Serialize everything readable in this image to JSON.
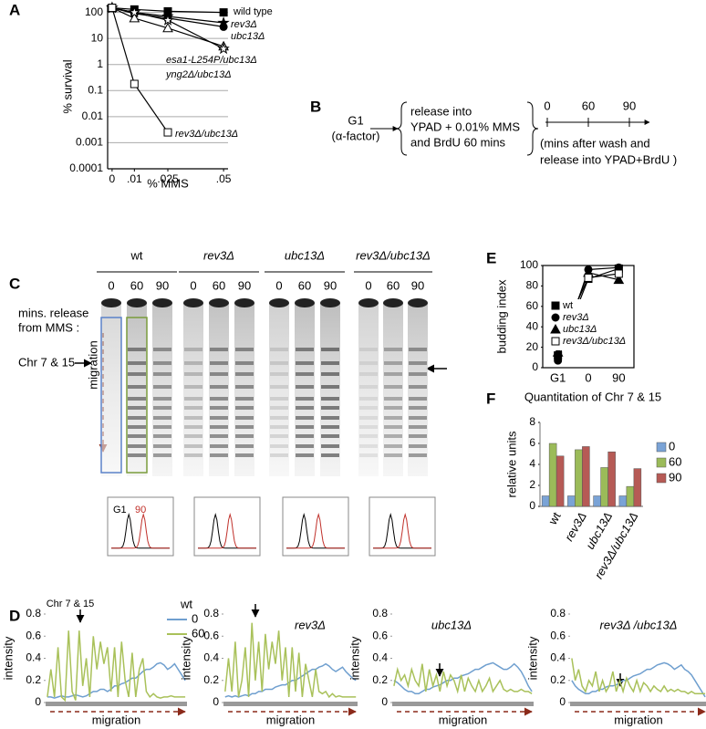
{
  "panel_labels": [
    "A",
    "B",
    "C",
    "D",
    "E",
    "F"
  ],
  "diagram_b": {
    "start": [
      "G1",
      "(α-factor)"
    ],
    "treatment": [
      "release into",
      "YPAD + 0.01% MMS",
      "and BrdU 60 mins"
    ],
    "timepoints": [
      "0",
      "60",
      "90"
    ],
    "note": [
      "(mins after wash and",
      "release into YPAD+BrdU )"
    ]
  },
  "gel_c": {
    "strains": [
      "wt",
      "rev3Δ",
      "ubc13Δ",
      "rev3Δ/ubc13Δ"
    ],
    "time_header": [
      "mins. release",
      "from MMS :"
    ],
    "lanes": [
      [
        "0",
        "60",
        "90"
      ],
      [
        "0",
        "60",
        "90"
      ],
      [
        "0",
        "60",
        "90"
      ],
      [
        "0",
        "60",
        "90"
      ]
    ],
    "marker": "Chr 7 & 15",
    "direction": "migration",
    "flow_labels": [
      "G1",
      "90"
    ]
  },
  "chart_data": [
    {
      "type": "line",
      "log_y": true,
      "grid": true,
      "legend": "direct",
      "xlabel": "% MMS",
      "ylabel": "% survival",
      "x": [
        0,
        0.01,
        0.025,
        0.05
      ],
      "xlim": [
        -0.002,
        0.052
      ],
      "xticks": [
        0,
        {
          "value": 0.01,
          "label": ".01"
        },
        {
          "value": 0.025,
          "label": ".025"
        },
        {
          "value": 0.05,
          "label": ".05"
        }
      ],
      "ylim": [
        0.0001,
        200
      ],
      "yticks": [
        0.0001,
        0.001,
        0.01,
        0.1,
        1,
        10,
        100
      ],
      "series": [
        {
          "name": "wild type",
          "color": "#000000",
          "marker": "square-filled",
          "values": [
            150,
            130,
            110,
            100
          ]
        },
        {
          "name": "rev3Δ",
          "color": "#000000",
          "marker": "star-filled",
          "values": [
            150,
            100,
            70,
            40
          ]
        },
        {
          "name": "ubc13Δ",
          "color": "#000000",
          "marker": "circle-filled",
          "values": [
            150,
            90,
            60,
            28
          ]
        },
        {
          "name": "esa1-L254P/ubc13Δ",
          "color": "#000000",
          "marker": "triangle-open",
          "values": [
            150,
            60,
            25,
            5
          ]
        },
        {
          "name": "yng2Δ/ubc13Δ",
          "color": "#000000",
          "marker": "star-open",
          "values": [
            150,
            100,
            50,
            4
          ]
        },
        {
          "name": "rev3Δ/ubc13Δ",
          "color": "#000000",
          "marker": "square-open",
          "values": [
            150,
            0.18,
            0.0025,
            null
          ]
        }
      ]
    },
    {
      "type": "line",
      "legend": "inside",
      "ylabel": "budding index",
      "categories": [
        "G1",
        "0",
        "90"
      ],
      "ylim": [
        0,
        100
      ],
      "yticks": [
        0,
        20,
        40,
        60,
        80,
        100
      ],
      "series": [
        {
          "name": "wt",
          "color": "#000000",
          "marker": "square-filled",
          "values": [
            12,
            87,
            97
          ]
        },
        {
          "name": "rev3Δ",
          "color": "#000000",
          "marker": "circle-filled",
          "values": [
            7,
            96,
            98
          ]
        },
        {
          "name": "ubc13Δ",
          "color": "#000000",
          "marker": "triangle-filled",
          "values": [
            15,
            93,
            86
          ]
        },
        {
          "name": "rev3Δ/ubc13Δ",
          "color": "#000000",
          "marker": "square-open",
          "values": [
            24,
            88,
            92
          ]
        }
      ]
    },
    {
      "type": "bar",
      "legend": "right",
      "title": "Quantitation of Chr 7 & 15",
      "ylabel": "relative units",
      "categories": [
        "wt",
        "rev3Δ",
        "ubc13Δ",
        "rev3Δ/ubc13Δ"
      ],
      "ylim": [
        0,
        8
      ],
      "yticks": [
        0,
        2,
        4,
        6,
        8
      ],
      "series": [
        {
          "name": "0",
          "color": "#7aa3d6",
          "values": [
            1,
            1,
            1,
            1
          ]
        },
        {
          "name": "60",
          "color": "#9bbb59",
          "values": [
            6.0,
            5.4,
            3.7,
            1.9
          ]
        },
        {
          "name": "90",
          "color": "#b65a55",
          "values": [
            4.8,
            5.7,
            5.2,
            3.6
          ]
        }
      ]
    },
    {
      "type": "line",
      "legend": "right",
      "title": "wt",
      "annotation": "Chr 7 & 15",
      "xlabel": "migration",
      "ylabel": "intensity",
      "categories": [
        null,
        null,
        null,
        null,
        null,
        null,
        null,
        null,
        null,
        null,
        null,
        null,
        null,
        null,
        null,
        null,
        null,
        null,
        null,
        null,
        null,
        null,
        null,
        null,
        null,
        null,
        null,
        null,
        null,
        null,
        null,
        null,
        null,
        null,
        null,
        null,
        null,
        null,
        null,
        null
      ],
      "ylim": [
        0,
        0.8
      ],
      "yticks": [
        0,
        0.2,
        0.4,
        0.6,
        0.8
      ],
      "series": [
        {
          "name": "0",
          "color": "#6f9fcf",
          "values": [
            0.05,
            0.05,
            0.04,
            0.05,
            0.06,
            0.05,
            0.05,
            0.06,
            0.07,
            0.06,
            0.05,
            0.06,
            0.08,
            0.1,
            0.1,
            0.12,
            0.12,
            0.1,
            0.12,
            0.15,
            0.15,
            0.17,
            0.18,
            0.2,
            0.22,
            0.22,
            0.25,
            0.28,
            0.3,
            0.3,
            0.32,
            0.35,
            0.36,
            0.34,
            0.3,
            0.32,
            0.35,
            0.3,
            0.25,
            0.2
          ]
        },
        {
          "name": "60",
          "color": "#a9c15a",
          "values": [
            0.05,
            0.3,
            0.05,
            0.5,
            0.05,
            0.02,
            0.65,
            0.1,
            0.02,
            0.65,
            0.15,
            0.4,
            0.05,
            0.6,
            0.3,
            0.55,
            0.35,
            0.5,
            0.1,
            0.5,
            0.05,
            0.55,
            0.2,
            0.05,
            0.45,
            0.05,
            0.3,
            0.4,
            0.1,
            0.05,
            0.08,
            0.05,
            0.04,
            0.05,
            0.05,
            0.06,
            0.05,
            0.05,
            0.05,
            0.05
          ]
        }
      ]
    },
    {
      "type": "line",
      "title": "rev3Δ",
      "xlabel": "migration",
      "ylabel": "intensity",
      "categories": [
        null,
        null,
        null,
        null,
        null,
        null,
        null,
        null,
        null,
        null,
        null,
        null,
        null,
        null,
        null,
        null,
        null,
        null,
        null,
        null,
        null,
        null,
        null,
        null,
        null,
        null,
        null,
        null,
        null,
        null,
        null,
        null,
        null,
        null,
        null,
        null,
        null,
        null,
        null,
        null
      ],
      "ylim": [
        0,
        0.8
      ],
      "yticks": [
        0,
        0.2,
        0.4,
        0.6,
        0.8
      ],
      "series": [
        {
          "color": "#6f9fcf",
          "values": [
            0.05,
            0.06,
            0.05,
            0.06,
            0.05,
            0.06,
            0.07,
            0.06,
            0.08,
            0.08,
            0.1,
            0.1,
            0.12,
            0.12,
            0.12,
            0.14,
            0.15,
            0.16,
            0.16,
            0.18,
            0.2,
            0.2,
            0.22,
            0.24,
            0.26,
            0.28,
            0.3,
            0.3,
            0.32,
            0.33,
            0.35,
            0.33,
            0.3,
            0.28,
            0.3,
            0.32,
            0.28,
            0.25,
            0.22,
            0.2
          ]
        },
        {
          "color": "#a9c15a",
          "values": [
            0.1,
            0.4,
            0.1,
            0.55,
            0.05,
            0.2,
            0.5,
            0.05,
            0.72,
            0.2,
            0.55,
            0.1,
            0.62,
            0.3,
            0.55,
            0.35,
            0.65,
            0.2,
            0.5,
            0.05,
            0.5,
            0.1,
            0.45,
            0.05,
            0.35,
            0.2,
            0.05,
            0.3,
            0.1,
            0.08,
            0.1,
            0.05,
            0.08,
            0.05,
            0.06,
            0.05,
            0.05,
            0.05,
            0.05,
            0.05
          ]
        }
      ]
    },
    {
      "type": "line",
      "title": "ubc13Δ",
      "xlabel": "migration",
      "ylabel": "intensity",
      "categories": [
        null,
        null,
        null,
        null,
        null,
        null,
        null,
        null,
        null,
        null,
        null,
        null,
        null,
        null,
        null,
        null,
        null,
        null,
        null,
        null,
        null,
        null,
        null,
        null,
        null,
        null,
        null,
        null,
        null,
        null,
        null,
        null,
        null,
        null,
        null,
        null,
        null,
        null,
        null,
        null
      ],
      "ylim": [
        0,
        0.8
      ],
      "yticks": [
        0,
        0.2,
        0.4,
        0.6,
        0.8
      ],
      "series": [
        {
          "color": "#6f9fcf",
          "values": [
            0.2,
            0.18,
            0.15,
            0.12,
            0.1,
            0.1,
            0.08,
            0.08,
            0.1,
            0.12,
            0.12,
            0.14,
            0.15,
            0.16,
            0.18,
            0.2,
            0.2,
            0.22,
            0.22,
            0.24,
            0.25,
            0.26,
            0.28,
            0.3,
            0.3,
            0.32,
            0.34,
            0.35,
            0.36,
            0.34,
            0.32,
            0.3,
            0.3,
            0.32,
            0.35,
            0.32,
            0.28,
            0.22,
            0.15,
            0.1
          ]
        },
        {
          "color": "#a9c15a",
          "values": [
            0.15,
            0.3,
            0.2,
            0.25,
            0.15,
            0.3,
            0.2,
            0.15,
            0.35,
            0.1,
            0.3,
            0.15,
            0.25,
            0.1,
            0.28,
            0.15,
            0.25,
            0.2,
            0.1,
            0.25,
            0.1,
            0.22,
            0.15,
            0.1,
            0.2,
            0.1,
            0.15,
            0.22,
            0.1,
            0.15,
            0.2,
            0.12,
            0.1,
            0.12,
            0.1,
            0.1,
            0.12,
            0.1,
            0.1,
            0.08
          ]
        }
      ]
    },
    {
      "type": "line",
      "title": "rev3Δ /ubc13Δ",
      "xlabel": "migration",
      "ylabel": "intensity",
      "categories": [
        null,
        null,
        null,
        null,
        null,
        null,
        null,
        null,
        null,
        null,
        null,
        null,
        null,
        null,
        null,
        null,
        null,
        null,
        null,
        null,
        null,
        null,
        null,
        null,
        null,
        null,
        null,
        null,
        null,
        null,
        null,
        null,
        null,
        null,
        null,
        null,
        null,
        null,
        null,
        null
      ],
      "ylim": [
        0,
        0.8
      ],
      "yticks": [
        0,
        0.2,
        0.4,
        0.6,
        0.8
      ],
      "series": [
        {
          "color": "#6f9fcf",
          "values": [
            0.2,
            0.15,
            0.12,
            0.1,
            0.08,
            0.08,
            0.1,
            0.1,
            0.12,
            0.12,
            0.14,
            0.15,
            0.15,
            0.16,
            0.18,
            0.2,
            0.2,
            0.22,
            0.24,
            0.25,
            0.26,
            0.28,
            0.3,
            0.3,
            0.32,
            0.34,
            0.35,
            0.36,
            0.35,
            0.33,
            0.3,
            0.32,
            0.34,
            0.3,
            0.28,
            0.25,
            0.2,
            0.15,
            0.1,
            0.05
          ]
        },
        {
          "color": "#a9c15a",
          "values": [
            0.4,
            0.2,
            0.3,
            0.15,
            0.1,
            0.2,
            0.15,
            0.28,
            0.1,
            0.2,
            0.1,
            0.15,
            0.28,
            0.1,
            0.2,
            0.1,
            0.22,
            0.15,
            0.1,
            0.2,
            0.1,
            0.18,
            0.15,
            0.1,
            0.15,
            0.12,
            0.1,
            0.15,
            0.1,
            0.12,
            0.1,
            0.12,
            0.1,
            0.1,
            0.08,
            0.1,
            0.08,
            0.08,
            0.08,
            0.08
          ]
        }
      ]
    }
  ]
}
